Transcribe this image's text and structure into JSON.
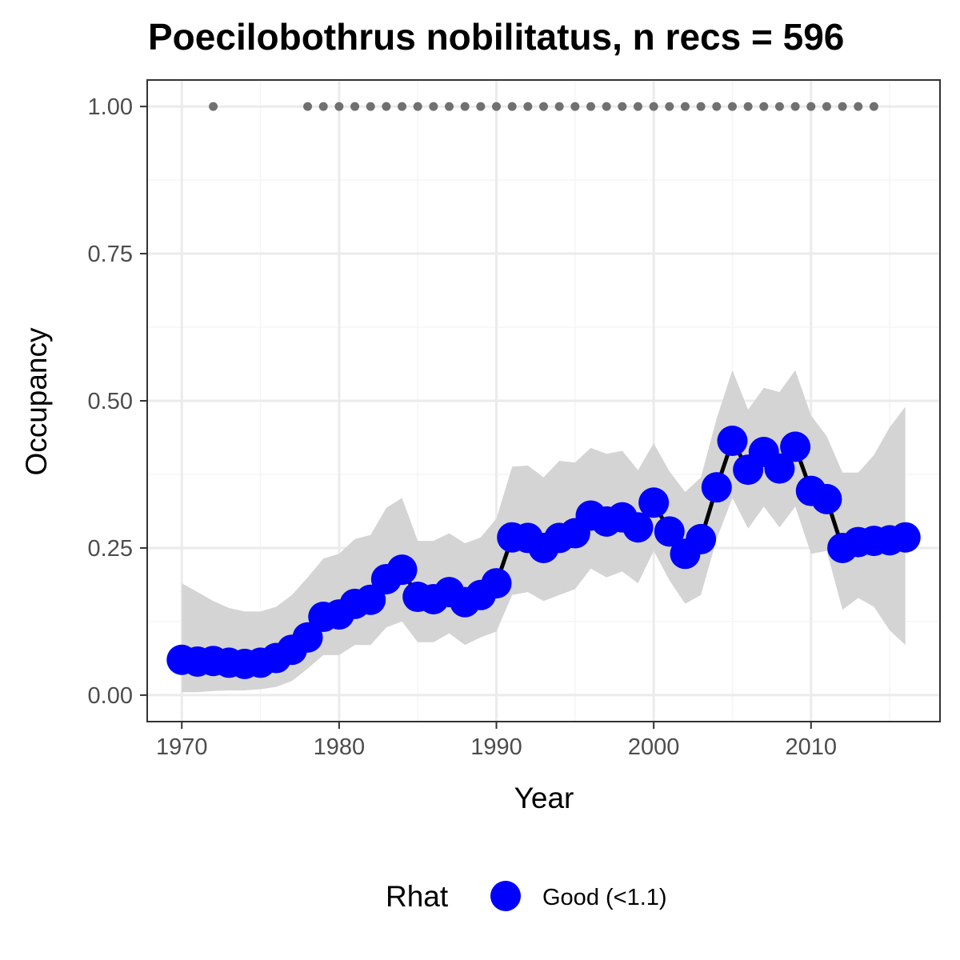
{
  "chart_data": {
    "type": "line",
    "title": "Poecilobothrus nobilitatus, n recs = 596",
    "xlabel": "Year",
    "ylabel": "Occupancy",
    "xlim": [
      1967.8,
      2018.2
    ],
    "ylim": [
      -0.045,
      1.045
    ],
    "x_ticks": [
      1970,
      1980,
      1990,
      2000,
      2010
    ],
    "x_tick_labels": [
      "1970",
      "1980",
      "1990",
      "2000",
      "2010"
    ],
    "y_ticks": [
      0,
      0.25,
      0.5,
      0.75,
      1.0
    ],
    "y_tick_labels": [
      "0.00",
      "0.25",
      "0.50",
      "0.75",
      "1.00"
    ],
    "grid": true,
    "background": "#ffffff",
    "grid_major_color": "#ebebeb",
    "grid_minor_color": "#f5f5f5",
    "panel_border_color": "#333333",
    "x": [
      1970,
      1971,
      1972,
      1973,
      1974,
      1975,
      1976,
      1977,
      1978,
      1979,
      1980,
      1981,
      1982,
      1983,
      1984,
      1985,
      1986,
      1987,
      1988,
      1989,
      1990,
      1991,
      1992,
      1993,
      1994,
      1995,
      1996,
      1997,
      1998,
      1999,
      2000,
      2001,
      2002,
      2003,
      2004,
      2005,
      2006,
      2007,
      2008,
      2009,
      2010,
      2011,
      2012,
      2013,
      2014,
      2015,
      2016
    ],
    "series": [
      {
        "name": "Good (<1.1)",
        "color": "#0000ff",
        "line_color": "#000000",
        "values": [
          0.06,
          0.057,
          0.058,
          0.055,
          0.053,
          0.055,
          0.063,
          0.077,
          0.098,
          0.133,
          0.137,
          0.155,
          0.162,
          0.197,
          0.213,
          0.167,
          0.163,
          0.175,
          0.158,
          0.17,
          0.19,
          0.268,
          0.267,
          0.25,
          0.267,
          0.275,
          0.305,
          0.295,
          0.302,
          0.285,
          0.327,
          0.278,
          0.24,
          0.265,
          0.353,
          0.432,
          0.383,
          0.413,
          0.385,
          0.422,
          0.347,
          0.333,
          0.25,
          0.26,
          0.262,
          0.263,
          0.268
        ],
        "ci_lower": [
          0.005,
          0.005,
          0.007,
          0.008,
          0.008,
          0.01,
          0.014,
          0.024,
          0.045,
          0.068,
          0.068,
          0.085,
          0.085,
          0.115,
          0.125,
          0.09,
          0.09,
          0.105,
          0.085,
          0.098,
          0.108,
          0.17,
          0.175,
          0.16,
          0.17,
          0.18,
          0.215,
          0.2,
          0.21,
          0.19,
          0.245,
          0.195,
          0.155,
          0.17,
          0.265,
          0.335,
          0.283,
          0.32,
          0.285,
          0.32,
          0.24,
          0.245,
          0.145,
          0.165,
          0.15,
          0.11,
          0.085
        ],
        "ci_upper": [
          0.19,
          0.175,
          0.16,
          0.148,
          0.142,
          0.142,
          0.15,
          0.17,
          0.2,
          0.232,
          0.24,
          0.265,
          0.272,
          0.318,
          0.335,
          0.262,
          0.262,
          0.275,
          0.258,
          0.268,
          0.3,
          0.388,
          0.39,
          0.37,
          0.398,
          0.395,
          0.42,
          0.41,
          0.415,
          0.382,
          0.428,
          0.38,
          0.345,
          0.37,
          0.47,
          0.552,
          0.485,
          0.522,
          0.515,
          0.552,
          0.475,
          0.44,
          0.378,
          0.378,
          0.408,
          0.455,
          0.49
        ]
      }
    ],
    "ci_fill_color": "#d4d4d4",
    "records": {
      "y": 1.0,
      "years": [
        1972,
        1978,
        1979,
        1980,
        1981,
        1982,
        1983,
        1984,
        1985,
        1986,
        1987,
        1988,
        1989,
        1990,
        1991,
        1992,
        1993,
        1994,
        1995,
        1996,
        1997,
        1998,
        1999,
        2000,
        2001,
        2002,
        2003,
        2004,
        2005,
        2006,
        2007,
        2008,
        2009,
        2010,
        2011,
        2012,
        2013,
        2014
      ],
      "color": "#707070"
    }
  },
  "legend": {
    "title": "Rhat",
    "items": [
      {
        "label": "Good (<1.1)",
        "color": "#0000ff"
      }
    ]
  }
}
